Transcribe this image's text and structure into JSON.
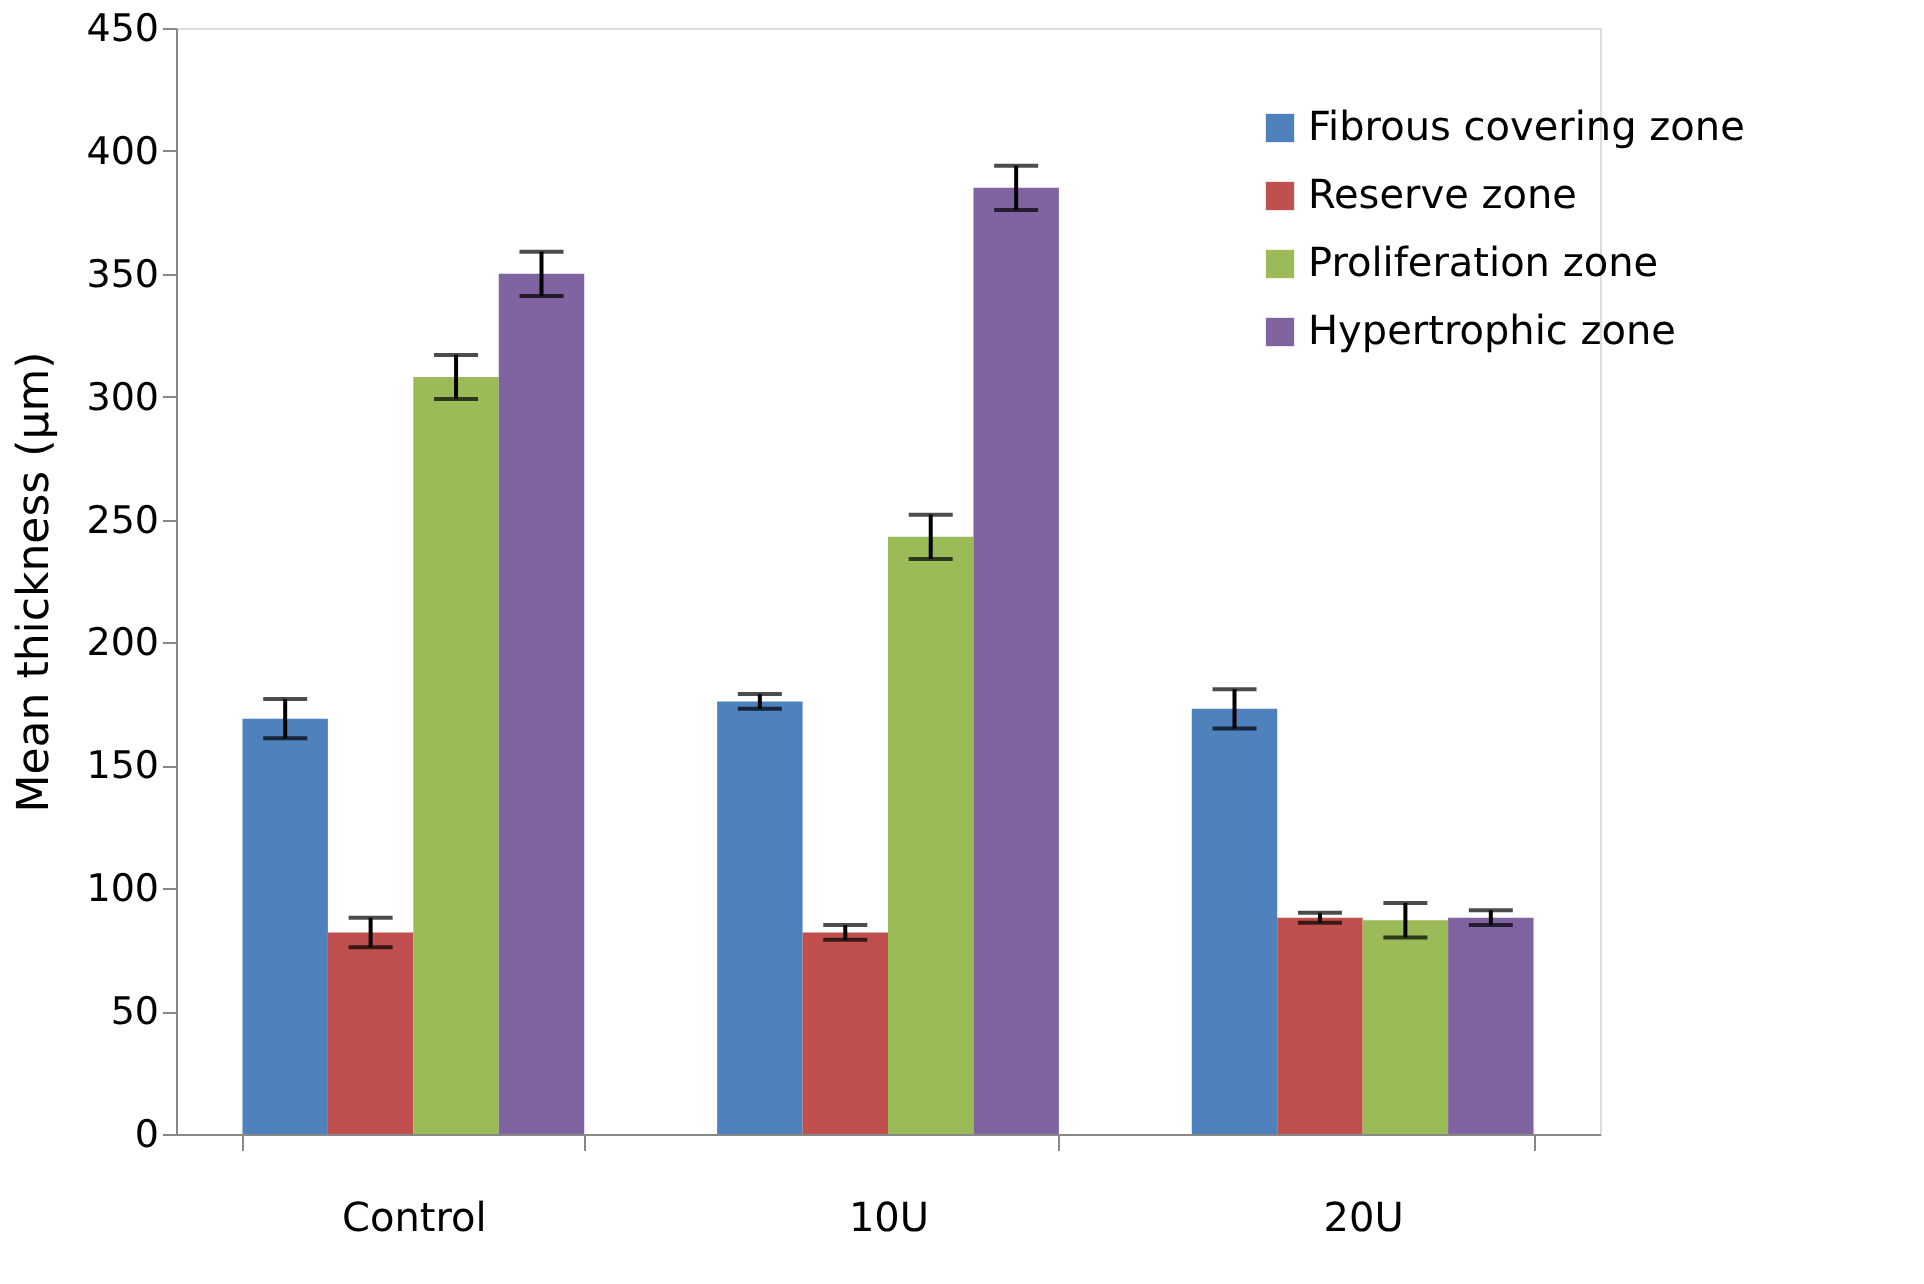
{
  "chart_data": {
    "type": "bar",
    "ylabel": "Mean thickness (μm)",
    "categories": [
      "Control",
      "10U",
      "20U"
    ],
    "series": [
      {
        "name": "Fibrous covering zone",
        "color": "#4f81bd",
        "values": [
          169,
          176,
          173
        ],
        "errors": [
          8,
          3,
          8
        ]
      },
      {
        "name": "Reserve zone",
        "color": "#c0504d",
        "values": [
          82,
          82,
          88
        ],
        "errors": [
          6,
          3,
          2
        ]
      },
      {
        "name": "Proliferation zone",
        "color": "#9bbb59",
        "values": [
          308,
          243,
          87
        ],
        "errors": [
          9,
          9,
          7
        ]
      },
      {
        "name": "Hypertrophic zone",
        "color": "#8064a2",
        "values": [
          350,
          385,
          88
        ],
        "errors": [
          9,
          9,
          3
        ]
      }
    ],
    "ylim": [
      0,
      450
    ],
    "yticks": [
      0,
      50,
      100,
      150,
      200,
      250,
      300,
      350,
      400,
      450
    ],
    "grid": false,
    "legend": "top right"
  }
}
